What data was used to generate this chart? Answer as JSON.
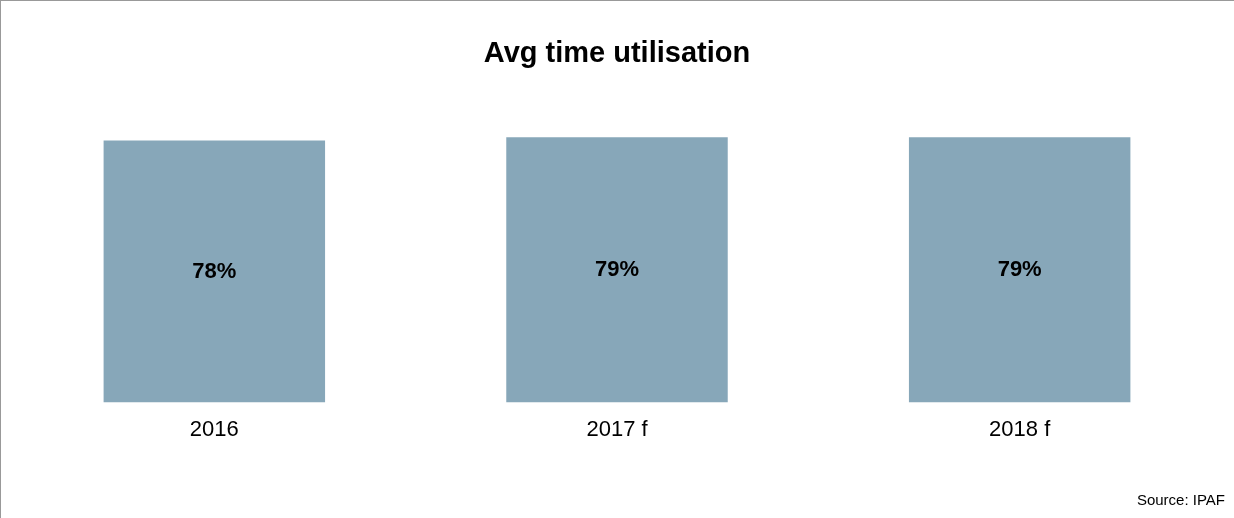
{
  "chart_data": {
    "type": "bar",
    "title": "Avg time utilisation",
    "categories": [
      "2016",
      "2017 f",
      "2018 f"
    ],
    "series": [
      {
        "color": "#87a7b9",
        "values": [
          78,
          79,
          79
        ],
        "value_labels": [
          "78%",
          "79%",
          "79%"
        ]
      }
    ],
    "annotations": [
      "Source: IPAF"
    ],
    "grid": false,
    "legend": false
  }
}
